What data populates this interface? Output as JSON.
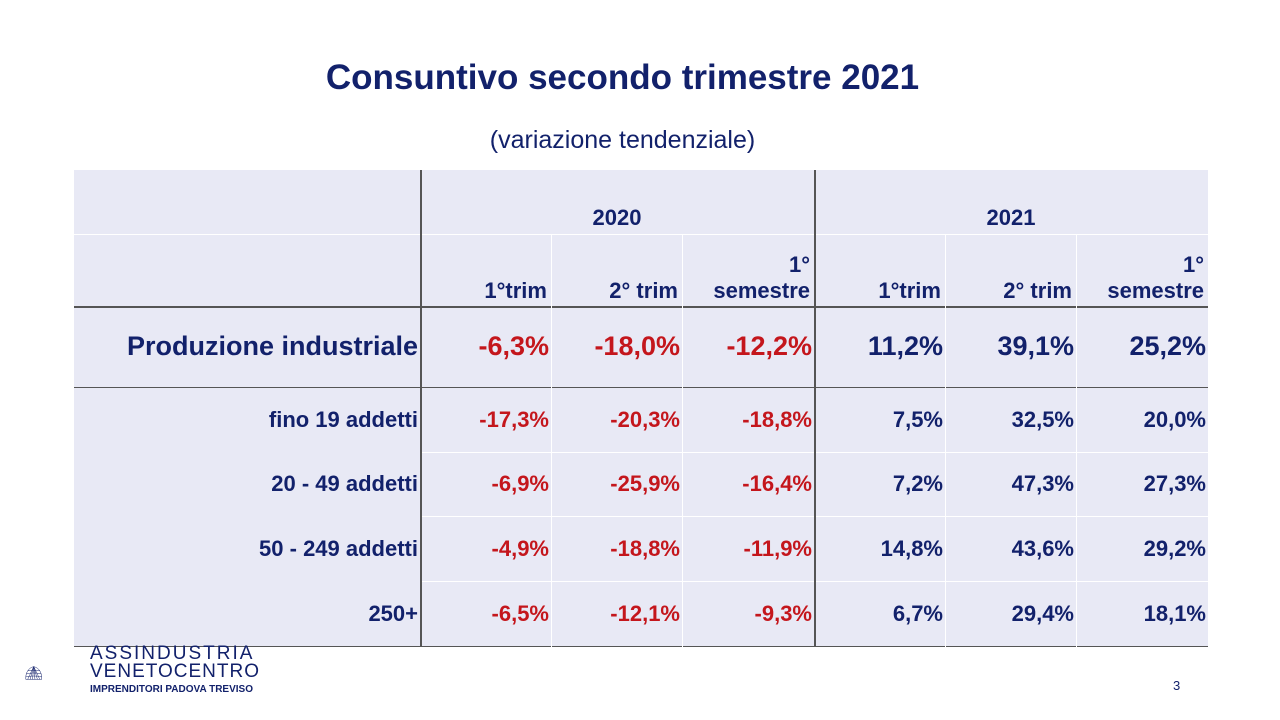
{
  "title": "Consuntivo secondo trimestre 2021",
  "subtitle": "(variazione tendenziale)",
  "table": {
    "years": [
      "2020",
      "2021"
    ],
    "columns": [
      {
        "line1": "",
        "line2": "1°trim"
      },
      {
        "line1": "",
        "line2": "2° trim"
      },
      {
        "line1": "1°",
        "line2": "semestre"
      },
      {
        "line1": "",
        "line2": "1°trim"
      },
      {
        "line1": "",
        "line2": "2° trim"
      },
      {
        "line1": "1°",
        "line2": "semestre"
      }
    ],
    "rows": [
      {
        "label": "Produzione industriale",
        "values": [
          "-6,3%",
          "-18,0%",
          "-12,2%",
          "11,2%",
          "39,1%",
          "25,2%"
        ]
      },
      {
        "label": "fino 19 addetti",
        "values": [
          "-17,3%",
          "-20,3%",
          "-18,8%",
          "7,5%",
          "32,5%",
          "20,0%"
        ]
      },
      {
        "label": "20 - 49 addetti",
        "values": [
          "-6,9%",
          "-25,9%",
          "-16,4%",
          "7,2%",
          "47,3%",
          "27,3%"
        ]
      },
      {
        "label": "50 - 249 addetti",
        "values": [
          "-4,9%",
          "-18,8%",
          "-11,9%",
          "14,8%",
          "43,6%",
          "29,2%"
        ]
      },
      {
        "label": "250+",
        "values": [
          "-6,5%",
          "-12,1%",
          "-9,3%",
          "6,7%",
          "29,4%",
          "18,1%"
        ]
      }
    ]
  },
  "logo": {
    "line1": "ASSINDUSTRIA",
    "line2": "VENETOCENTRO",
    "line3": "IMPRENDITORI PADOVA TREVISO",
    "icon": "shell-logo-icon"
  },
  "page_number": "3",
  "colors": {
    "navy": "#12216b",
    "red": "#c4161c",
    "table_bg": "#e8e9f5"
  }
}
